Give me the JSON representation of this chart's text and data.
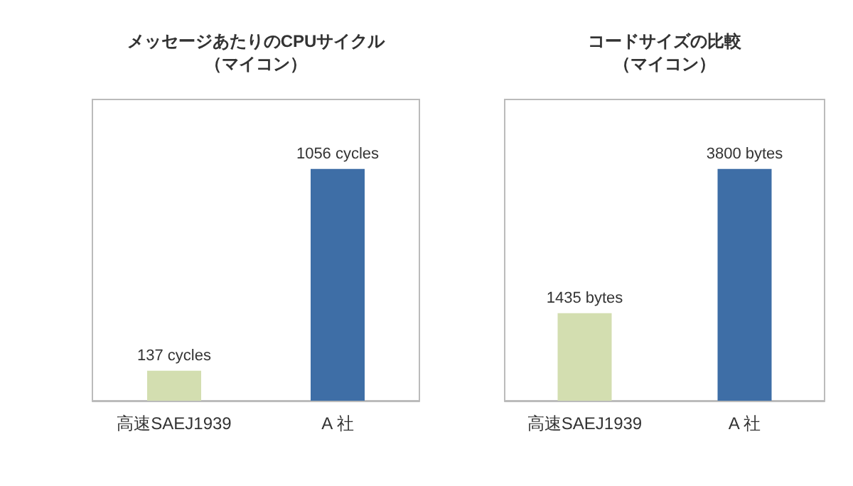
{
  "chart_data": [
    {
      "type": "bar",
      "title": "メッセージあたりのCPUサイクル",
      "subtitle": "（マイコン）",
      "categories": [
        "高速SAEJ1939",
        "A 社"
      ],
      "values": [
        137,
        1056
      ],
      "colors": [
        "#d3deb0",
        "#3e6ea6"
      ],
      "value_labels": [
        "137 cycles",
        "1056 cycles"
      ],
      "grid": false
    },
    {
      "type": "bar",
      "title": "コードサイズの比較",
      "subtitle": "（マイコン）",
      "categories": [
        "高速SAEJ1939",
        "A 社"
      ],
      "values": [
        1435,
        3800
      ],
      "colors": [
        "#d3deb0",
        "#3e6ea6"
      ],
      "value_labels": [
        "1435 bytes",
        "3800 bytes"
      ],
      "grid": false
    }
  ]
}
